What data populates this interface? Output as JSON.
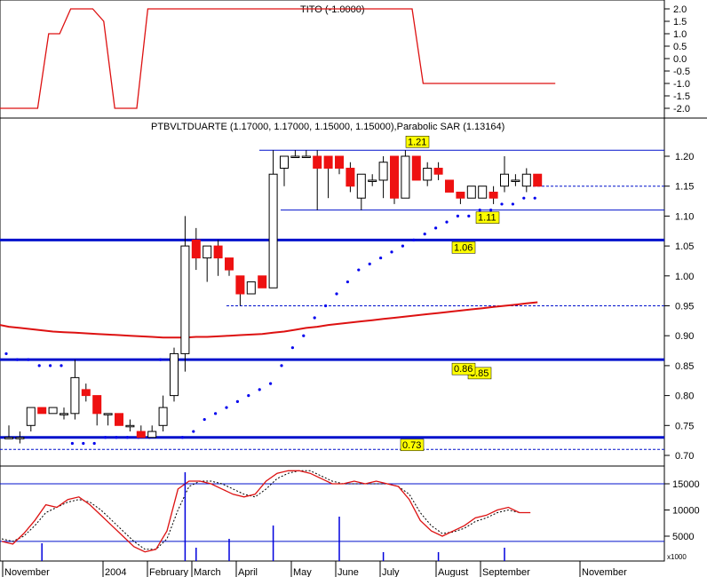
{
  "colors": {
    "background": "#ffffff",
    "up_candle": "#ffffff",
    "down_candle": "#ee1111",
    "candle_outline": "#000000",
    "sar": "#0000ee",
    "moving_average": "#dd1111",
    "levels": "#0011cc",
    "indicator": "#dd1111",
    "label_box": "#ffff00",
    "volume": "#0000dd"
  },
  "tito_panel": {
    "title": "TITO (-1.0000)",
    "y_ticks": [
      "2.0",
      "1.5",
      "1.0",
      "0.5",
      "0.0",
      "-0.5",
      "-1.0",
      "-1.5",
      "-2.0"
    ]
  },
  "price_panel": {
    "title": "PTBVLTDUARTE (1.17000, 1.17000, 1.15000, 1.15000),Parabolic SAR (1.13164)",
    "y_ticks": [
      "1.20",
      "1.15",
      "1.10",
      "1.05",
      "1.00",
      "0.95",
      "0.90",
      "0.85",
      "0.80",
      "0.75",
      "0.70"
    ],
    "level_labels": [
      "1.21",
      "1.11",
      "1.06",
      "0.85",
      "0.86",
      "0.73"
    ]
  },
  "oscillator_panel": {
    "y_ticks": [
      "15000",
      "10000",
      "5000"
    ]
  },
  "x_axis": {
    "labels": [
      "November",
      "2004",
      "February",
      "March",
      "April",
      "May",
      "June",
      "July",
      "August",
      "September",
      "November"
    ],
    "scale_note": "x1000"
  },
  "chart_data": {
    "type": "candlestick",
    "title": "PTBVLTDUARTE (1.17000, 1.17000, 1.15000, 1.15000),Parabolic SAR (1.13164)",
    "series_note": "weekly candles, approximate values read from axis",
    "ylim": [
      0.685,
      1.225
    ],
    "candles": [
      {
        "o": 0.73,
        "h": 0.75,
        "l": 0.73,
        "c": 0.73
      },
      {
        "o": 0.73,
        "h": 0.74,
        "l": 0.72,
        "c": 0.73
      },
      {
        "o": 0.75,
        "h": 0.78,
        "l": 0.74,
        "c": 0.78
      },
      {
        "o": 0.78,
        "h": 0.78,
        "l": 0.77,
        "c": 0.77
      },
      {
        "o": 0.77,
        "h": 0.78,
        "l": 0.77,
        "c": 0.78
      },
      {
        "o": 0.77,
        "h": 0.78,
        "l": 0.76,
        "c": 0.77
      },
      {
        "o": 0.77,
        "h": 0.86,
        "l": 0.76,
        "c": 0.83
      },
      {
        "o": 0.81,
        "h": 0.82,
        "l": 0.79,
        "c": 0.8
      },
      {
        "o": 0.8,
        "h": 0.8,
        "l": 0.75,
        "c": 0.77
      },
      {
        "o": 0.77,
        "h": 0.77,
        "l": 0.75,
        "c": 0.77
      },
      {
        "o": 0.77,
        "h": 0.77,
        "l": 0.75,
        "c": 0.75
      },
      {
        "o": 0.75,
        "h": 0.76,
        "l": 0.74,
        "c": 0.75
      },
      {
        "o": 0.74,
        "h": 0.75,
        "l": 0.73,
        "c": 0.73
      },
      {
        "o": 0.73,
        "h": 0.75,
        "l": 0.73,
        "c": 0.74
      },
      {
        "o": 0.75,
        "h": 0.8,
        "l": 0.74,
        "c": 0.78
      },
      {
        "o": 0.8,
        "h": 0.88,
        "l": 0.79,
        "c": 0.87
      },
      {
        "o": 0.87,
        "h": 1.1,
        "l": 0.84,
        "c": 1.05
      },
      {
        "o": 1.06,
        "h": 1.08,
        "l": 1.01,
        "c": 1.03
      },
      {
        "o": 1.03,
        "h": 1.05,
        "l": 0.99,
        "c": 1.05
      },
      {
        "o": 1.05,
        "h": 1.06,
        "l": 1.0,
        "c": 1.03
      },
      {
        "o": 1.03,
        "h": 1.03,
        "l": 1.0,
        "c": 1.01
      },
      {
        "o": 1.0,
        "h": 1.0,
        "l": 0.95,
        "c": 0.97
      },
      {
        "o": 0.97,
        "h": 0.99,
        "l": 0.97,
        "c": 0.99
      },
      {
        "o": 1.0,
        "h": 1.0,
        "l": 0.98,
        "c": 0.98
      },
      {
        "o": 0.98,
        "h": 1.21,
        "l": 0.98,
        "c": 1.17
      },
      {
        "o": 1.18,
        "h": 1.2,
        "l": 1.15,
        "c": 1.2
      },
      {
        "o": 1.2,
        "h": 1.21,
        "l": 1.2,
        "c": 1.2
      },
      {
        "o": 1.2,
        "h": 1.21,
        "l": 1.2,
        "c": 1.2
      },
      {
        "o": 1.2,
        "h": 1.21,
        "l": 1.11,
        "c": 1.18
      },
      {
        "o": 1.2,
        "h": 1.2,
        "l": 1.13,
        "c": 1.18
      },
      {
        "o": 1.2,
        "h": 1.2,
        "l": 1.17,
        "c": 1.18
      },
      {
        "o": 1.18,
        "h": 1.19,
        "l": 1.14,
        "c": 1.15
      },
      {
        "o": 1.13,
        "h": 1.17,
        "l": 1.11,
        "c": 1.17
      },
      {
        "o": 1.16,
        "h": 1.17,
        "l": 1.15,
        "c": 1.16
      },
      {
        "o": 1.16,
        "h": 1.2,
        "l": 1.13,
        "c": 1.19
      },
      {
        "o": 1.2,
        "h": 1.2,
        "l": 1.12,
        "c": 1.13
      },
      {
        "o": 1.13,
        "h": 1.21,
        "l": 1.13,
        "c": 1.2
      },
      {
        "o": 1.2,
        "h": 1.2,
        "l": 1.16,
        "c": 1.16
      },
      {
        "o": 1.16,
        "h": 1.19,
        "l": 1.15,
        "c": 1.18
      },
      {
        "o": 1.18,
        "h": 1.19,
        "l": 1.16,
        "c": 1.17
      },
      {
        "o": 1.16,
        "h": 1.16,
        "l": 1.14,
        "c": 1.14
      },
      {
        "o": 1.14,
        "h": 1.14,
        "l": 1.12,
        "c": 1.13
      },
      {
        "o": 1.13,
        "h": 1.15,
        "l": 1.13,
        "c": 1.15
      },
      {
        "o": 1.13,
        "h": 1.15,
        "l": 1.13,
        "c": 1.15
      },
      {
        "o": 1.14,
        "h": 1.15,
        "l": 1.12,
        "c": 1.13
      },
      {
        "o": 1.15,
        "h": 1.2,
        "l": 1.14,
        "c": 1.17
      },
      {
        "o": 1.16,
        "h": 1.17,
        "l": 1.15,
        "c": 1.16
      },
      {
        "o": 1.15,
        "h": 1.18,
        "l": 1.14,
        "c": 1.17
      },
      {
        "o": 1.17,
        "h": 1.17,
        "l": 1.15,
        "c": 1.15
      }
    ],
    "parabolic_sar": [
      0.87,
      0.86,
      0.86,
      0.85,
      0.85,
      0.85,
      0.72,
      0.72,
      0.72,
      0.73,
      0.73,
      0.73,
      0.73,
      0.73,
      0.86,
      0.86,
      0.73,
      0.74,
      0.76,
      0.77,
      0.78,
      0.79,
      0.8,
      0.81,
      0.82,
      0.85,
      0.88,
      0.9,
      0.93,
      0.95,
      0.97,
      0.99,
      1.01,
      1.02,
      1.03,
      1.04,
      1.05,
      1.06,
      1.07,
      1.08,
      1.09,
      1.1,
      1.1,
      1.11,
      1.11,
      1.12,
      1.12,
      1.13,
      1.13
    ],
    "moving_average": [
      0.915,
      0.913,
      0.911,
      0.909,
      0.907,
      0.906,
      0.905,
      0.904,
      0.903,
      0.902,
      0.901,
      0.9,
      0.899,
      0.898,
      0.897,
      0.897,
      0.897,
      0.898,
      0.898,
      0.899,
      0.9,
      0.901,
      0.902,
      0.903,
      0.905,
      0.907,
      0.91,
      0.913,
      0.915,
      0.918,
      0.92,
      0.922,
      0.924,
      0.926,
      0.928,
      0.93,
      0.932,
      0.934,
      0.936,
      0.938,
      0.94,
      0.942,
      0.944,
      0.946,
      0.948,
      0.95,
      0.952,
      0.954,
      0.956
    ],
    "horizontal_levels": [
      1.06,
      0.86,
      0.73
    ],
    "thin_levels": [
      1.21,
      1.11
    ],
    "dashed_levels": [
      1.15,
      0.95,
      0.71
    ],
    "tito": [
      -2,
      -2,
      1,
      1,
      2,
      2,
      2,
      1.5,
      -2,
      -2,
      -2,
      2,
      2,
      2,
      2,
      2,
      2,
      2,
      2,
      2,
      2,
      2,
      2,
      2,
      2,
      2,
      2,
      2,
      2,
      2,
      2,
      2,
      2,
      2,
      2,
      2,
      -1,
      -1,
      -1,
      -1,
      -1,
      -1,
      -1,
      -1,
      -1,
      -1,
      -1,
      -1,
      -1
    ],
    "oscillator": [
      4000,
      3500,
      5500,
      8000,
      11000,
      10500,
      12000,
      12500,
      11000,
      9000,
      7000,
      5000,
      3000,
      2000,
      2500,
      6000,
      14000,
      15500,
      15500,
      15000,
      14000,
      13000,
      12500,
      13000,
      15500,
      17000,
      17500,
      17500,
      17000,
      16000,
      15000,
      15000,
      15500,
      15000,
      15500,
      15000,
      14500,
      12000,
      8000,
      6000,
      5000,
      6000,
      7000,
      8500,
      9000,
      10000,
      10500,
      9500,
      9500
    ],
    "oscillator_signal": [
      4500,
      4000,
      5000,
      7000,
      9500,
      10500,
      11500,
      12000,
      11500,
      10000,
      8000,
      6000,
      4000,
      2500,
      2500,
      4500,
      10000,
      14500,
      15500,
      15500,
      15000,
      14000,
      13000,
      12500,
      14000,
      16000,
      17000,
      17500,
      17500,
      16500,
      15500,
      15000,
      15000,
      15000,
      15000,
      15000,
      14500,
      13000,
      9500,
      7000,
      5500,
      5800,
      6500,
      7800,
      8500,
      9500,
      10000,
      9500,
      9500
    ],
    "volume": [
      0,
      0,
      0,
      4,
      0,
      0,
      0,
      0,
      0,
      0,
      0,
      0,
      0,
      0,
      0,
      0,
      20,
      3,
      0,
      0,
      5,
      0,
      0,
      0,
      8,
      0,
      0,
      0,
      0,
      0,
      10,
      0,
      0,
      0,
      2,
      0,
      0,
      0,
      0,
      2,
      0,
      0,
      0,
      0,
      0,
      3,
      0,
      0,
      0
    ]
  }
}
